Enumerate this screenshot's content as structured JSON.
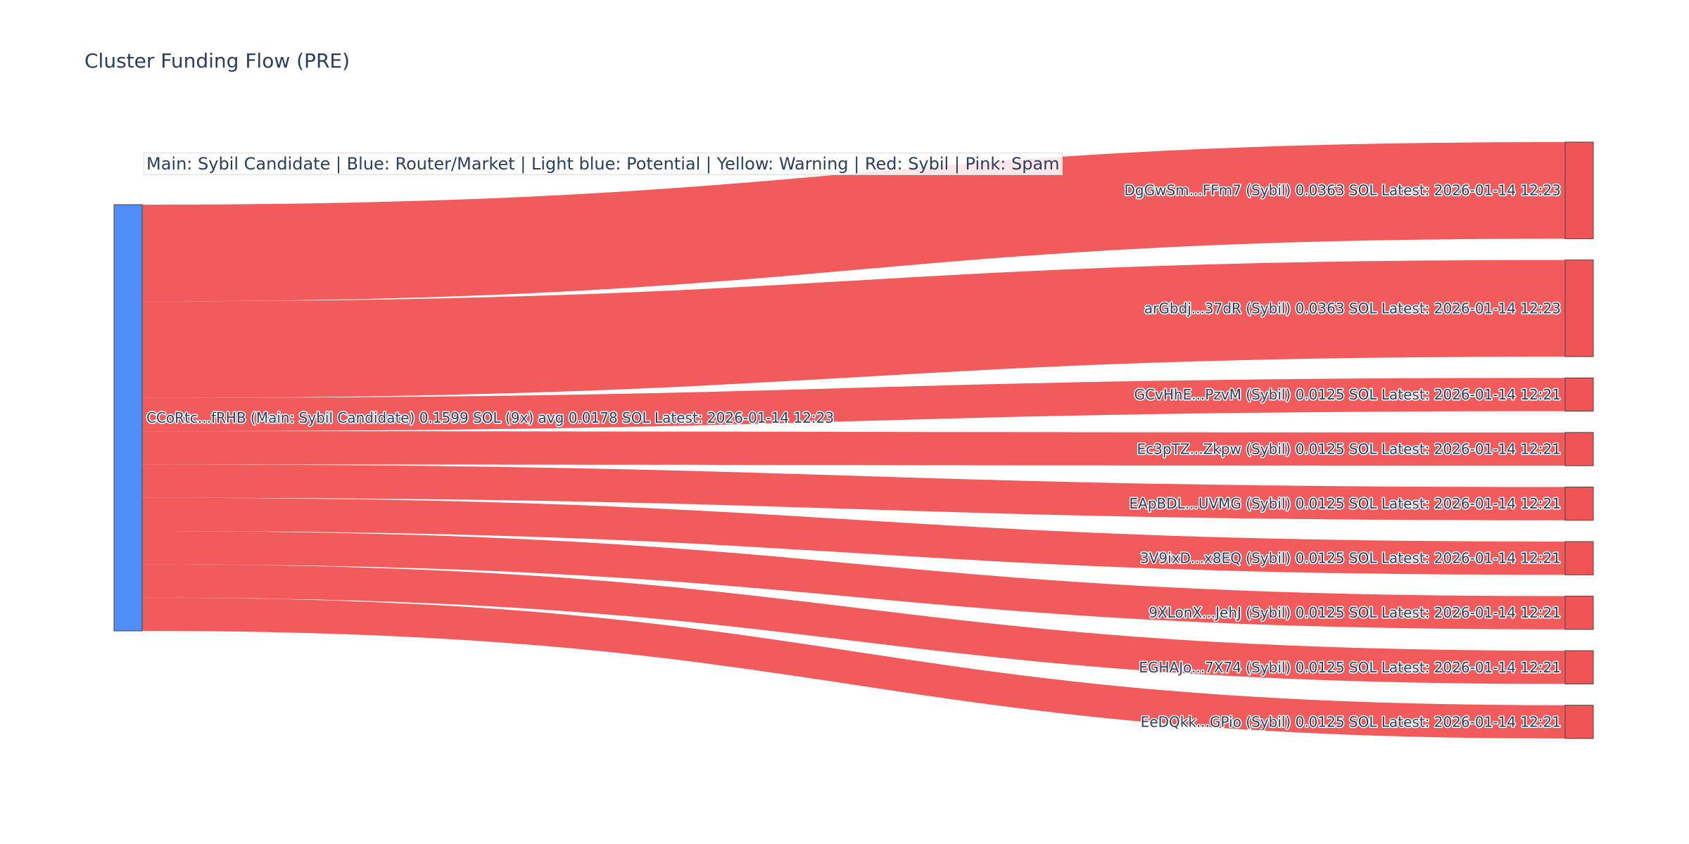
{
  "chart_data": {
    "type": "sankey",
    "title": "Cluster Funding Flow (PRE)",
    "annotation": "Main: Sybil Candidate  |  Blue: Router/Market | Light blue: Potential | Yellow: Warning | Red: Sybil | Pink: Spam",
    "colors": {
      "main_node": "#4f8ef7",
      "sybil_node": "#f05454",
      "link": "#f05454",
      "node_border": "#444444"
    },
    "source": {
      "label": "CCoRtc...fRHB (Main: Sybil Candidate) 0.1599 SOL (9x) avg 0.0178 SOL Latest: 2026-01-14 12:23",
      "value": 0.1599
    },
    "targets": [
      {
        "label": "DgGwSm...FFm7 (Sybil) 0.0363 SOL Latest: 2026-01-14 12:23",
        "value": 0.0363
      },
      {
        "label": "arGbdj...37dR (Sybil) 0.0363 SOL Latest: 2026-01-14 12:23",
        "value": 0.0363
      },
      {
        "label": "GCvHhE...PzvM (Sybil) 0.0125 SOL Latest: 2026-01-14 12:21",
        "value": 0.0125
      },
      {
        "label": "Ec3pTZ...Zkpw (Sybil) 0.0125 SOL Latest: 2026-01-14 12:21",
        "value": 0.0125
      },
      {
        "label": "EApBDL...UVMG (Sybil) 0.0125 SOL Latest: 2026-01-14 12:21",
        "value": 0.0125
      },
      {
        "label": "3V9ixD...x8EQ (Sybil) 0.0125 SOL Latest: 2026-01-14 12:21",
        "value": 0.0125
      },
      {
        "label": "9XLonX...JehJ (Sybil) 0.0125 SOL Latest: 2026-01-14 12:21",
        "value": 0.0125
      },
      {
        "label": "EGHAJo...7X74 (Sybil) 0.0125 SOL Latest: 2026-01-14 12:21",
        "value": 0.0125
      },
      {
        "label": "EeDQkk...GPio (Sybil) 0.0125 SOL Latest: 2026-01-14 12:21",
        "value": 0.0125
      }
    ]
  }
}
